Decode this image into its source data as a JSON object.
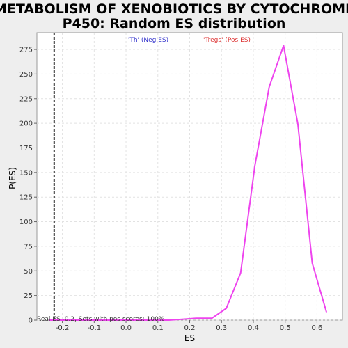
{
  "chart_data": {
    "type": "line",
    "title_lines": [
      "METABOLISM OF XENOBIOTICS BY CYTOCHROME",
      "P450: Random ES distribution"
    ],
    "xlabel": "ES",
    "ylabel": "P(ES)",
    "xlim": [
      -0.28,
      0.68
    ],
    "ylim": [
      0,
      292
    ],
    "x_ticks": [
      -0.2,
      -0.1,
      0.0,
      0.1,
      0.2,
      0.3,
      0.4,
      0.5,
      0.6
    ],
    "x_tick_labels": [
      "-0.2",
      "-0.1",
      "0.0",
      "0.1",
      "0.2",
      "0.3",
      "0.4",
      "0.5",
      "0.6"
    ],
    "y_ticks": [
      0,
      25,
      50,
      75,
      100,
      125,
      150,
      175,
      200,
      225,
      250,
      275
    ],
    "y_tick_labels": [
      "0",
      "25",
      "50",
      "75",
      "100",
      "125",
      "150",
      "175",
      "200",
      "225",
      "250",
      "275"
    ],
    "grid": true,
    "legend": [
      {
        "label": "'Th' (Neg ES)",
        "color": "#3333cc"
      },
      {
        "label": "'Tregs' (Pos ES)",
        "color": "#dd3333"
      }
    ],
    "series": [
      {
        "color": "#ee44ee",
        "x": [
          -0.24,
          -0.19,
          -0.145,
          -0.1,
          -0.05,
          0.0,
          0.045,
          0.09,
          0.135,
          0.18,
          0.22,
          0.27,
          0.315,
          0.36,
          0.405,
          0.45,
          0.495,
          0.54,
          0.585,
          0.63
        ],
        "y": [
          0,
          0,
          0,
          0,
          0,
          0,
          0,
          0,
          0,
          1,
          2,
          2,
          12,
          48,
          157,
          237,
          279,
          199,
          58,
          8
        ]
      }
    ],
    "real_es": -0.2258,
    "real_es_line_color": "#333333",
    "footnote": "Real ES -0.2, Sets with pos scores: 100%"
  }
}
